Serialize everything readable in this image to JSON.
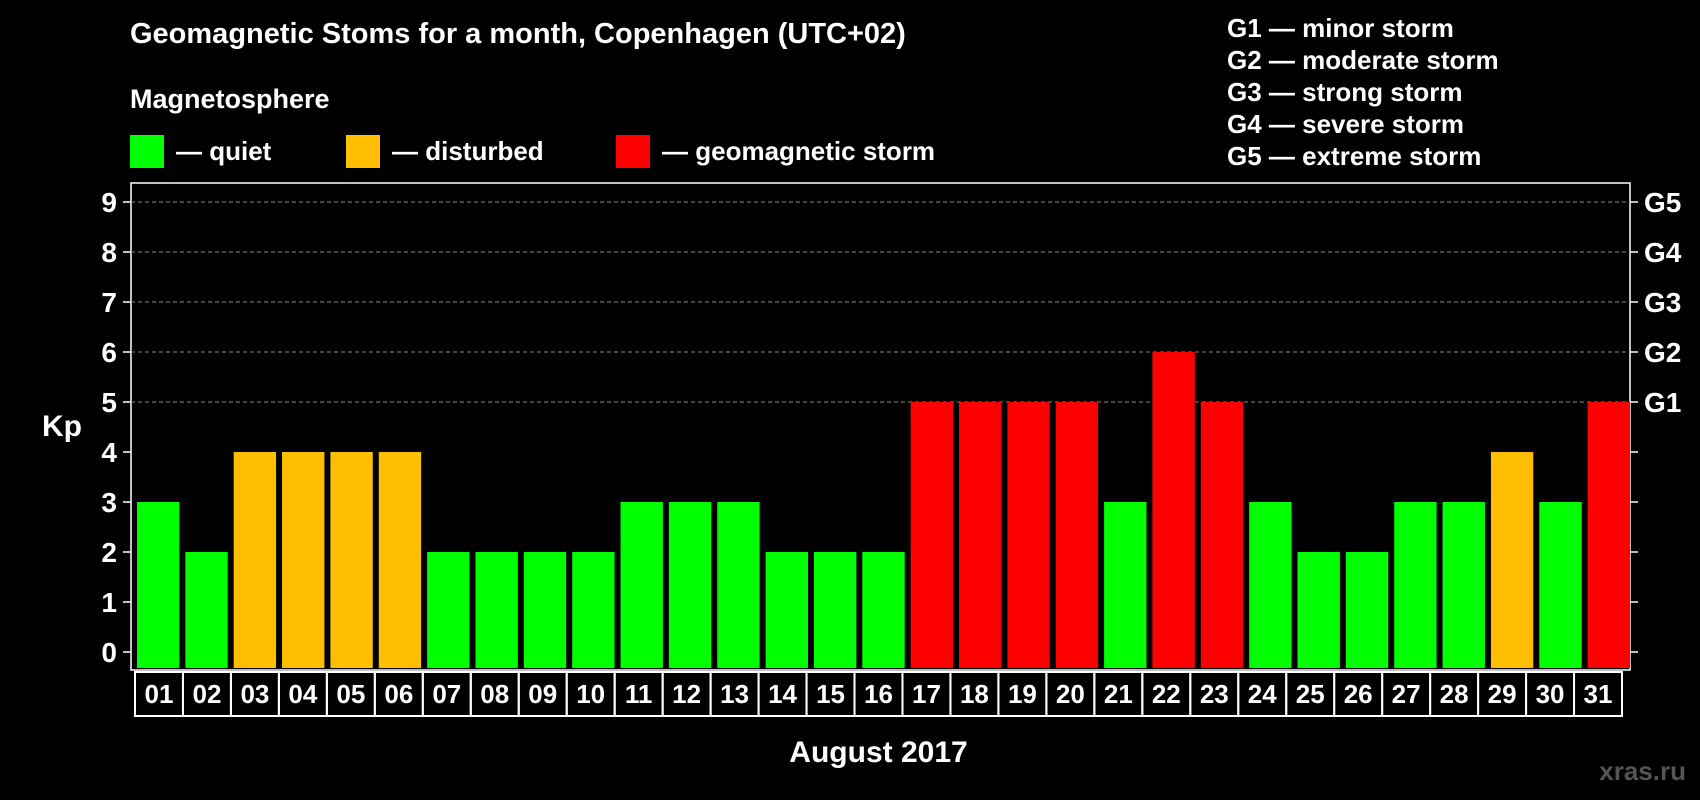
{
  "chart_data": {
    "type": "bar",
    "title": "Geomagnetic Stoms for a month, Copenhagen (UTC+02)",
    "subtitle": "Magnetosphere",
    "xlabel": "August 2017",
    "ylabel": "Kp",
    "ylim": [
      0,
      9
    ],
    "yticks": [
      "0",
      "1",
      "2",
      "3",
      "4",
      "5",
      "6",
      "7",
      "8",
      "9"
    ],
    "right_ticks": [
      {
        "kp": 5,
        "label": "G1"
      },
      {
        "kp": 6,
        "label": "G2"
      },
      {
        "kp": 7,
        "label": "G3"
      },
      {
        "kp": 8,
        "label": "G4"
      },
      {
        "kp": 9,
        "label": "G5"
      }
    ],
    "categories": [
      "01",
      "02",
      "03",
      "04",
      "05",
      "06",
      "07",
      "08",
      "09",
      "10",
      "11",
      "12",
      "13",
      "14",
      "15",
      "16",
      "17",
      "18",
      "19",
      "20",
      "21",
      "22",
      "23",
      "24",
      "25",
      "26",
      "27",
      "28",
      "29",
      "30",
      "31"
    ],
    "values": [
      3,
      2,
      4,
      4,
      4,
      4,
      2,
      2,
      2,
      2,
      3,
      3,
      3,
      2,
      2,
      2,
      5,
      5,
      5,
      5,
      3,
      6,
      5,
      3,
      2,
      2,
      3,
      3,
      4,
      3,
      5
    ],
    "grid": true,
    "legend": [
      {
        "key": "quiet",
        "label": "— quiet",
        "color": "#00ff00"
      },
      {
        "key": "disturbed",
        "label": "— disturbed",
        "color": "#ffbf00"
      },
      {
        "key": "storm",
        "label": "— geomagnetic storm",
        "color": "#ff0000"
      }
    ],
    "storm_scale": [
      "G1 — minor storm",
      "G2 — moderate storm",
      "G3 — strong storm",
      "G4 — severe storm",
      "G5 — extreme storm"
    ]
  },
  "watermark": "xras.ru"
}
